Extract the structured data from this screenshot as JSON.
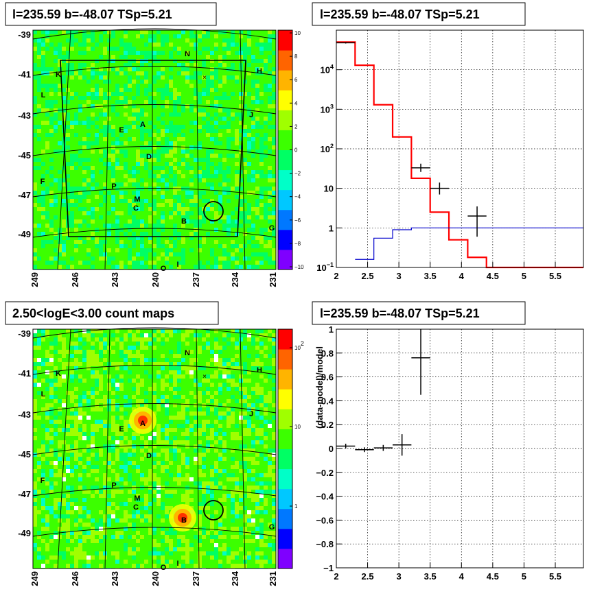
{
  "pads": {
    "tl_title": "l=235.59 b=-48.07 TSp=5.21",
    "tr_title": "l=235.59 b=-48.07 TSp=5.21",
    "bl_title": "2.50<logE<3.00 count maps",
    "br_title": "l=235.59 b=-48.07 TSp=5.21"
  },
  "chart_data": [
    {
      "type": "heatmap",
      "title": "l=235.59 b=-48.07 TSp=5.21",
      "x_ticks": [
        "249",
        "246",
        "243",
        "240",
        "237",
        "234",
        "231"
      ],
      "y_ticks": [
        "-39",
        "-41",
        "-43",
        "-45",
        "-47",
        "-49"
      ],
      "colorbar_ticks": [
        "10",
        "8",
        "6",
        "4",
        "2",
        "0",
        "−2",
        "−4",
        "−6",
        "−8",
        "−10"
      ],
      "zlim": [
        -10,
        10
      ],
      "sources": [
        "N",
        "H",
        "K",
        "L",
        "J",
        "E",
        "A",
        "D",
        "F",
        "P",
        "M",
        "C",
        "B",
        "G",
        "O",
        "I"
      ],
      "marker": "×",
      "colors": [
        "#7f00ff",
        "#0000ff",
        "#0078ff",
        "#00c8ff",
        "#00ffc8",
        "#00ff64",
        "#3cff00",
        "#a0ff00",
        "#ffff00",
        "#ffb400",
        "#ff6400",
        "#ff0000"
      ]
    },
    {
      "type": "line",
      "title": "l=235.59 b=-48.07 TSp=5.21",
      "xlim": [
        2,
        5.95
      ],
      "ylim": [
        0.1,
        100000
      ],
      "yscale": "log",
      "x_ticks": [
        "2",
        "2.5",
        "3",
        "3.5",
        "4",
        "4.5",
        "5",
        "5.5"
      ],
      "y_ticks": [
        "10^4",
        "10^3",
        "10^2",
        "10",
        "1",
        "10^−1"
      ],
      "grid": true,
      "series": [
        {
          "color": "#ff0000",
          "style": "step",
          "bins": [
            [
              2.0,
              2.3,
              50000
            ],
            [
              2.3,
              2.6,
              13000
            ],
            [
              2.6,
              2.9,
              1300
            ],
            [
              2.9,
              3.2,
              200
            ],
            [
              3.2,
              3.5,
              18
            ],
            [
              3.5,
              3.8,
              2.5
            ],
            [
              3.8,
              4.1,
              0.5
            ],
            [
              4.1,
              4.4,
              0.18
            ],
            [
              4.4,
              5.95,
              0.1
            ]
          ]
        },
        {
          "color": "#0000cc",
          "style": "step",
          "bins": [
            [
              2.3,
              2.6,
              0.16
            ],
            [
              2.6,
              2.9,
              0.55
            ],
            [
              2.9,
              3.2,
              0.9
            ],
            [
              3.2,
              3.5,
              1.0
            ],
            [
              3.5,
              5.95,
              1.0
            ]
          ]
        },
        {
          "color": "#000000",
          "style": "errors",
          "points": [
            [
              2.15,
              2.0,
              2.3,
              48000,
              46000,
              50000
            ],
            [
              3.35,
              3.2,
              3.5,
              33,
              26,
              42
            ],
            [
              3.65,
              3.5,
              3.8,
              10,
              7,
              14
            ],
            [
              4.25,
              4.1,
              4.4,
              2,
              0.6,
              3.5
            ]
          ]
        }
      ]
    },
    {
      "type": "heatmap",
      "title": "2.50<logE<3.00 count maps",
      "x_ticks": [
        "249",
        "246",
        "243",
        "240",
        "237",
        "234",
        "231"
      ],
      "y_ticks": [
        "-39",
        "-41",
        "-43",
        "-45",
        "-47",
        "-49"
      ],
      "colorbar_ticks": [
        "10^2",
        "10",
        "1"
      ],
      "zscale": "log",
      "sources": [
        "N",
        "H",
        "K",
        "L",
        "J",
        "E",
        "A",
        "D",
        "F",
        "P",
        "M",
        "C",
        "B",
        "G",
        "O",
        "I"
      ],
      "marker": "×"
    },
    {
      "type": "scatter",
      "title": "l=235.59 b=-48.07 TSp=5.21",
      "ylabel": "(data-model)/model",
      "xlim": [
        2,
        5.95
      ],
      "ylim": [
        -1,
        1
      ],
      "x_ticks": [
        "2",
        "2.5",
        "3",
        "3.5",
        "4",
        "4.5",
        "5",
        "5.5"
      ],
      "y_ticks": [
        "1",
        "0.8",
        "0.6",
        "0.4",
        "0.2",
        "0",
        "−0.2",
        "−0.4",
        "−0.6",
        "−0.8",
        "−1"
      ],
      "grid": true,
      "points": [
        [
          2.15,
          2.0,
          2.3,
          0.02,
          0.0,
          0.04
        ],
        [
          2.45,
          2.3,
          2.6,
          -0.01,
          -0.03,
          0.01
        ],
        [
          2.75,
          2.6,
          2.9,
          0.005,
          -0.02,
          0.03
        ],
        [
          3.05,
          2.9,
          3.2,
          0.03,
          -0.06,
          0.12
        ],
        [
          3.35,
          3.2,
          3.5,
          0.76,
          0.45,
          1.0
        ]
      ]
    }
  ]
}
